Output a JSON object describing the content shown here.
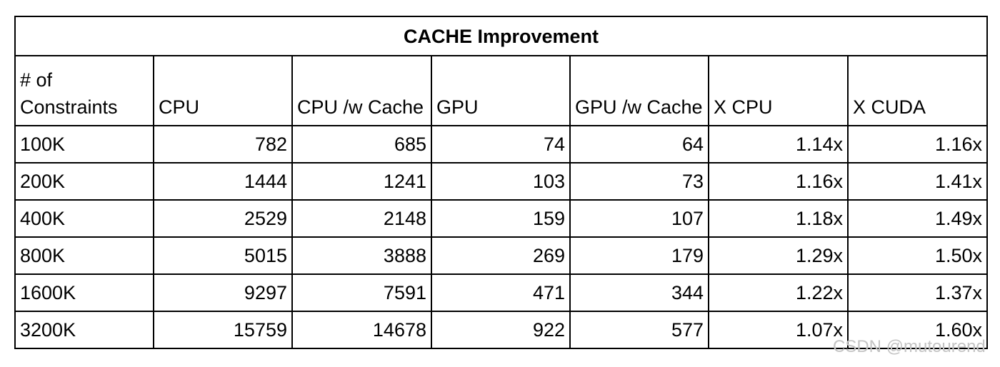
{
  "table": {
    "title": "CACHE Improvement",
    "columns": [
      "# of Constraints",
      "CPU",
      "CPU /w Cache",
      "GPU",
      "GPU /w Cache",
      "X CPU",
      "X CUDA"
    ],
    "rows": [
      [
        "100K",
        "782",
        "685",
        "74",
        "64",
        "1.14x",
        "1.16x"
      ],
      [
        "200K",
        "1444",
        "1241",
        "103",
        "73",
        "1.16x",
        "1.41x"
      ],
      [
        "400K",
        "2529",
        "2148",
        "159",
        "107",
        "1.18x",
        "1.49x"
      ],
      [
        "800K",
        "5015",
        "3888",
        "269",
        "179",
        "1.29x",
        "1.50x"
      ],
      [
        "1600K",
        "9297",
        "7591",
        "471",
        "344",
        "1.22x",
        "1.37x"
      ],
      [
        "3200K",
        "15759",
        "14678",
        "922",
        "577",
        "1.07x",
        "1.60x"
      ]
    ]
  },
  "watermark": "CSDN @mutourend"
}
